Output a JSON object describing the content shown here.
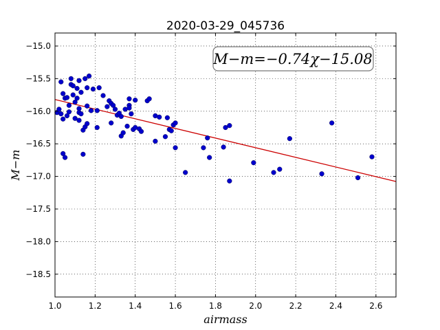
{
  "chart_data": {
    "type": "scatter",
    "title": "2020-03-29_045736",
    "xlabel": "airmass",
    "ylabel": "M−m",
    "annotation": "M−m=−0.74χ−15.08",
    "xlim": [
      1.0,
      2.7
    ],
    "ylim": [
      -18.85,
      -14.8
    ],
    "y_inverted": true,
    "grid": true,
    "grid_style": "dotted",
    "x_ticks": [
      "1.0",
      "1.2",
      "1.4",
      "1.6",
      "1.8",
      "2.0",
      "2.2",
      "2.4",
      "2.6"
    ],
    "y_ticks": [
      "−15.0",
      "−15.5",
      "−16.0",
      "−16.5",
      "−17.0",
      "−17.5",
      "−18.0",
      "−18.5"
    ],
    "colors": {
      "points": "#0000cc",
      "fit_line": "#cc0000"
    },
    "fit_line": {
      "slope": -0.74,
      "intercept": -15.08
    },
    "points": {
      "x": [
        1.01,
        1.02,
        1.03,
        1.03,
        1.04,
        1.04,
        1.04,
        1.05,
        1.05,
        1.06,
        1.06,
        1.07,
        1.07,
        1.08,
        1.08,
        1.09,
        1.09,
        1.1,
        1.1,
        1.11,
        1.11,
        1.12,
        1.12,
        1.12,
        1.12,
        1.13,
        1.13,
        1.14,
        1.14,
        1.15,
        1.15,
        1.16,
        1.16,
        1.16,
        1.17,
        1.18,
        1.19,
        1.21,
        1.21,
        1.22,
        1.24,
        1.26,
        1.27,
        1.28,
        1.28,
        1.29,
        1.3,
        1.31,
        1.32,
        1.33,
        1.33,
        1.34,
        1.35,
        1.36,
        1.37,
        1.37,
        1.37,
        1.38,
        1.39,
        1.4,
        1.4,
        1.42,
        1.43,
        1.46,
        1.47,
        1.5,
        1.5,
        1.52,
        1.55,
        1.56,
        1.57,
        1.58,
        1.59,
        1.6,
        1.6,
        1.65,
        1.74,
        1.76,
        1.77,
        1.84,
        1.85,
        1.87,
        1.87,
        1.99,
        2.09,
        2.12,
        2.17,
        2.33,
        2.38,
        2.51,
        2.58
      ],
      "y": [
        -16.02,
        -15.97,
        -16.04,
        -15.55,
        -15.73,
        -16.12,
        -16.65,
        -16.71,
        -15.8,
        -16.07,
        -15.79,
        -16.01,
        -15.91,
        -15.5,
        -15.59,
        -15.61,
        -15.75,
        -16.11,
        -15.86,
        -15.8,
        -15.65,
        -15.96,
        -16.02,
        -16.14,
        -15.53,
        -16.04,
        -15.71,
        -16.66,
        -16.29,
        -16.24,
        -15.5,
        -16.19,
        -15.64,
        -15.92,
        -15.46,
        -15.99,
        -15.66,
        -15.99,
        -16.25,
        -15.64,
        -15.76,
        -15.93,
        -15.84,
        -16.18,
        -15.88,
        -15.91,
        -15.97,
        -16.06,
        -16.03,
        -16.38,
        -16.08,
        -16.33,
        -15.97,
        -16.23,
        -15.81,
        -15.91,
        -15.95,
        -16.04,
        -16.28,
        -16.25,
        -15.83,
        -16.27,
        -16.31,
        -15.84,
        -15.81,
        -16.46,
        -16.07,
        -16.09,
        -16.39,
        -16.1,
        -16.28,
        -16.3,
        -16.21,
        -16.56,
        -16.18,
        -16.94,
        -16.56,
        -16.41,
        -16.71,
        -16.55,
        -16.25,
        -16.22,
        -17.07,
        -16.79,
        -16.94,
        -16.89,
        -16.42,
        -16.96,
        -16.18,
        -17.02,
        -16.7
      ]
    }
  }
}
